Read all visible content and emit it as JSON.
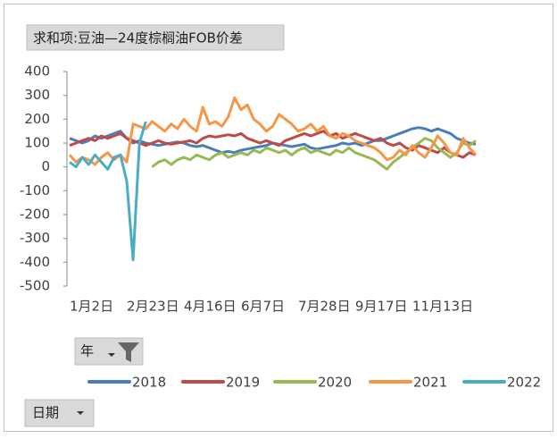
{
  "chart_data": {
    "type": "line",
    "title": "求和项:豆油—24度棕榈油FOB价差",
    "buttons": {
      "year": "年",
      "date": "日期"
    },
    "categories": [
      "1月2日",
      null,
      null,
      null,
      null,
      null,
      null,
      null,
      null,
      "2月23日",
      null,
      null,
      null,
      null,
      null,
      null,
      null,
      null,
      "4月16日",
      null,
      null,
      null,
      null,
      null,
      null,
      null,
      null,
      "6月7日",
      null,
      null,
      null,
      null,
      null,
      null,
      null,
      null,
      "7月28日",
      null,
      null,
      null,
      null,
      null,
      null,
      null,
      null,
      "9月17日",
      null,
      null,
      null,
      null,
      null,
      null,
      null,
      null,
      "11月13日",
      null,
      null,
      null,
      null,
      null,
      null,
      null,
      null,
      null,
      null
    ],
    "ylim": [
      -500,
      400
    ],
    "yticks": [
      -500,
      -400,
      -300,
      -200,
      -100,
      0,
      100,
      200,
      300,
      400
    ],
    "series": [
      {
        "name": "2018",
        "color": "#4a7ebb",
        "values": [
          120,
          110,
          100,
          110,
          130,
          120,
          130,
          140,
          150,
          120,
          100,
          110,
          100,
          95,
          90,
          95,
          100,
          105,
          100,
          90,
          85,
          90,
          80,
          70,
          60,
          65,
          60,
          70,
          75,
          80,
          85,
          90,
          100,
          95,
          90,
          85,
          90,
          95,
          80,
          75,
          80,
          85,
          90,
          100,
          95,
          100,
          90,
          100,
          110,
          110,
          120,
          130,
          140,
          150,
          160,
          165,
          160,
          150,
          160,
          150,
          140,
          120,
          110,
          100,
          95
        ]
      },
      {
        "name": "2019",
        "color": "#be4b48",
        "values": [
          90,
          100,
          110,
          120,
          110,
          130,
          120,
          130,
          140,
          120,
          110,
          100,
          90,
          100,
          110,
          100,
          95,
          100,
          105,
          110,
          100,
          120,
          130,
          125,
          130,
          135,
          130,
          140,
          120,
          110,
          100,
          110,
          100,
          90,
          110,
          120,
          130,
          140,
          130,
          140,
          150,
          130,
          140,
          120,
          130,
          140,
          130,
          120,
          110,
          120,
          100,
          90,
          100,
          80,
          70,
          90,
          80,
          70,
          60,
          80,
          60,
          50,
          40,
          60,
          50
        ]
      },
      {
        "name": "2020",
        "color": "#98b954",
        "values": [
          null,
          null,
          null,
          null,
          null,
          null,
          null,
          null,
          null,
          null,
          null,
          null,
          null,
          0,
          20,
          30,
          10,
          30,
          40,
          30,
          50,
          40,
          30,
          50,
          60,
          40,
          50,
          60,
          50,
          70,
          60,
          80,
          70,
          60,
          70,
          50,
          70,
          80,
          60,
          70,
          60,
          50,
          70,
          60,
          80,
          60,
          50,
          40,
          30,
          10,
          -10,
          20,
          40,
          60,
          80,
          100,
          120,
          110,
          80,
          60,
          40,
          60,
          100,
          90,
          110
        ]
      },
      {
        "name": "2021",
        "color": "#f79646",
        "values": [
          50,
          20,
          40,
          30,
          10,
          40,
          60,
          30,
          50,
          20,
          180,
          170,
          160,
          190,
          170,
          150,
          180,
          160,
          200,
          170,
          150,
          250,
          180,
          190,
          170,
          210,
          290,
          240,
          260,
          200,
          180,
          150,
          170,
          220,
          200,
          180,
          150,
          160,
          180,
          150,
          170,
          130,
          120,
          140,
          130,
          110,
          100,
          90,
          80,
          60,
          30,
          40,
          70,
          50,
          90,
          60,
          40,
          80,
          130,
          100,
          60,
          50,
          120,
          80,
          50
        ]
      },
      {
        "name": "2022",
        "color": "#4bacc6",
        "values": [
          20,
          0,
          40,
          10,
          50,
          20,
          -10,
          40,
          50,
          -60,
          -390,
          100,
          190,
          null,
          null,
          null,
          null,
          null,
          null,
          null,
          null,
          null,
          null,
          null,
          null,
          null,
          null,
          null,
          null,
          null,
          null,
          null,
          null,
          null,
          null,
          null,
          null,
          null,
          null,
          null,
          null,
          null,
          null,
          null,
          null,
          null,
          null,
          null,
          null,
          null,
          null,
          null,
          null,
          null,
          null,
          null,
          null,
          null,
          null,
          null,
          null,
          null,
          null,
          null,
          null
        ]
      }
    ]
  }
}
